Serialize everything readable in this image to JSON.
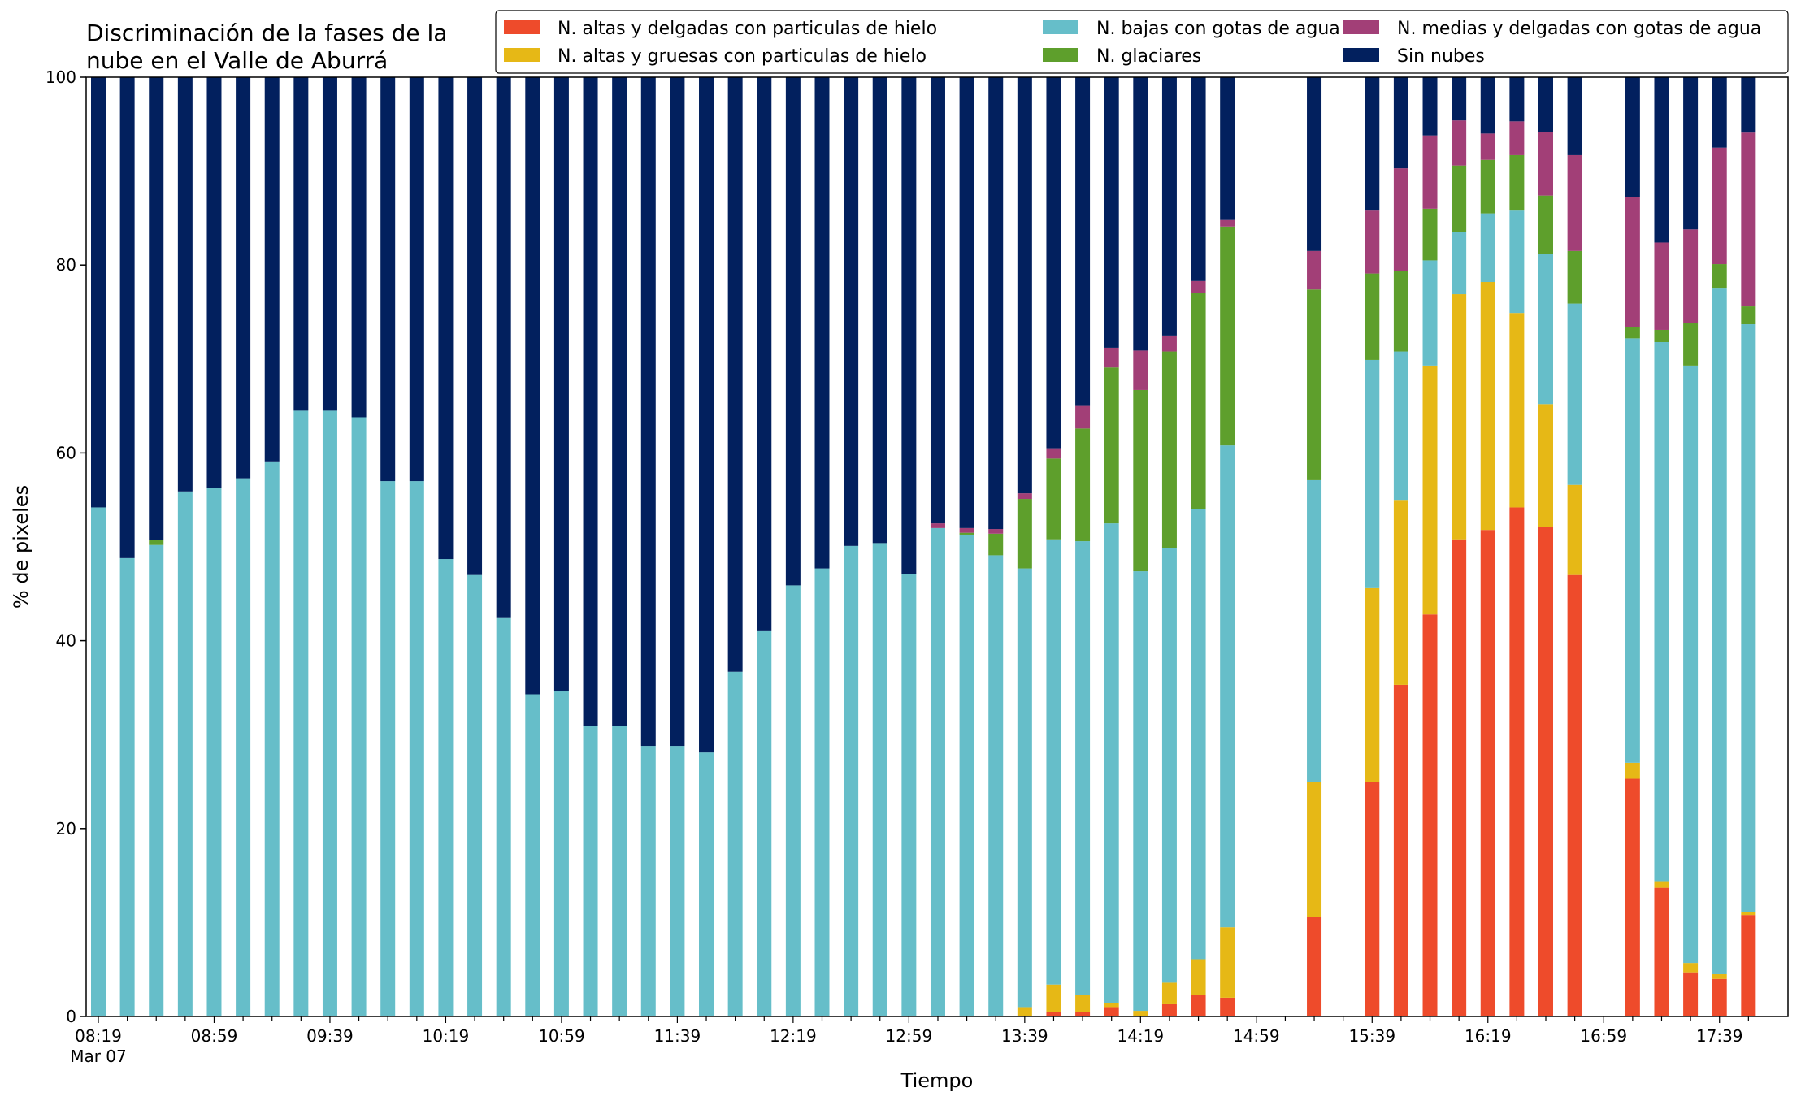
{
  "chart_data": {
    "type": "bar",
    "stacked": true,
    "title": "Discriminación de la fases de la nube en el Valle de Aburrá",
    "title_lines": [
      "Discriminación de la fases de la",
      "nube en el Valle de Aburrá"
    ],
    "xlabel": "Tiempo",
    "ylabel": "% de pixeles",
    "ylim": [
      0,
      100
    ],
    "yticks": [
      0,
      20,
      40,
      60,
      80,
      100
    ],
    "x_start": "08:19",
    "x_step_minutes": 10,
    "xtick_labels": [
      "08:19",
      "08:59",
      "09:39",
      "10:19",
      "10:59",
      "11:39",
      "12:19",
      "12:59",
      "13:39",
      "14:19",
      "14:59",
      "15:39",
      "16:19",
      "16:59",
      "17:39"
    ],
    "xtick_date": "Mar 07",
    "legend_position": "top-right",
    "grid": false,
    "categories": [
      "08:19",
      "08:29",
      "08:39",
      "08:49",
      "08:59",
      "09:09",
      "09:19",
      "09:29",
      "09:39",
      "09:49",
      "09:59",
      "10:09",
      "10:19",
      "10:29",
      "10:39",
      "10:49",
      "10:59",
      "11:09",
      "11:19",
      "11:29",
      "11:39",
      "11:49",
      "11:59",
      "12:09",
      "12:19",
      "12:29",
      "12:39",
      "12:49",
      "12:59",
      "13:09",
      "13:19",
      "13:29",
      "13:39",
      "13:49",
      "13:59",
      "14:09",
      "14:19",
      "14:29",
      "14:39",
      "14:49",
      "14:59",
      "15:09",
      "15:19",
      "15:29",
      "15:39",
      "15:49",
      "15:59",
      "16:09",
      "16:19",
      "16:29",
      "16:39",
      "16:49",
      "16:59",
      "17:09",
      "17:19",
      "17:29",
      "17:39",
      "17:49"
    ],
    "series": [
      {
        "name": "N. altas y delgadas con particulas de hielo",
        "color": "#EE4B2B",
        "values": [
          0,
          0,
          0,
          0,
          0,
          0,
          0,
          0,
          0,
          0,
          0,
          0,
          0,
          0,
          0,
          0,
          0,
          0,
          0,
          0,
          0,
          0,
          0,
          0,
          0,
          0,
          0,
          0,
          0,
          0,
          0,
          0,
          0,
          0.5,
          0.5,
          1.0,
          0,
          1.3,
          2.3,
          2.0,
          null,
          null,
          10.6,
          null,
          25.0,
          35.3,
          42.8,
          50.8,
          51.8,
          54.2,
          52.1,
          47.0,
          null,
          25.3,
          13.7,
          4.7,
          4.0,
          10.8
        ]
      },
      {
        "name": "N. altas y gruesas con particulas de hielo",
        "color": "#E6B816",
        "values": [
          0,
          0,
          0,
          0,
          0,
          0,
          0,
          0,
          0,
          0,
          0,
          0,
          0,
          0,
          0,
          0,
          0,
          0,
          0,
          0,
          0,
          0,
          0,
          0,
          0,
          0,
          0,
          0,
          0,
          0,
          0,
          0,
          1.0,
          2.9,
          1.8,
          0.4,
          0.6,
          2.3,
          3.8,
          7.5,
          null,
          null,
          14.4,
          null,
          20.6,
          19.7,
          26.5,
          26.1,
          26.4,
          20.7,
          13.1,
          9.6,
          null,
          1.7,
          0.7,
          1.0,
          0.5,
          0.3
        ]
      },
      {
        "name": "N. bajas con gotas de agua",
        "color": "#66BEC9",
        "values": [
          54.2,
          48.8,
          50.2,
          55.9,
          56.3,
          57.3,
          59.1,
          64.5,
          64.5,
          63.8,
          57.0,
          57.0,
          48.7,
          47.0,
          42.5,
          34.3,
          34.6,
          30.9,
          30.9,
          28.8,
          28.8,
          28.1,
          36.7,
          41.1,
          45.9,
          47.7,
          50.1,
          50.4,
          47.1,
          52.0,
          51.3,
          49.1,
          46.7,
          47.4,
          48.3,
          51.1,
          46.8,
          46.3,
          47.9,
          51.3,
          null,
          null,
          32.1,
          null,
          24.3,
          15.8,
          11.2,
          6.6,
          7.3,
          10.9,
          16.0,
          19.3,
          null,
          45.2,
          57.4,
          63.6,
          73.0,
          62.6
        ]
      },
      {
        "name": "N. glaciares",
        "color": "#5E9F2C",
        "values": [
          0,
          0,
          0.5,
          0,
          0,
          0,
          0,
          0,
          0,
          0,
          0,
          0,
          0,
          0,
          0,
          0,
          0,
          0,
          0,
          0,
          0,
          0,
          0,
          0,
          0,
          0,
          0,
          0,
          0,
          0,
          0.2,
          2.3,
          7.4,
          8.6,
          12.0,
          16.6,
          19.3,
          20.9,
          23.0,
          23.3,
          null,
          null,
          20.3,
          null,
          9.2,
          8.6,
          5.5,
          7.1,
          5.7,
          5.9,
          6.2,
          5.6,
          null,
          1.2,
          1.3,
          4.5,
          2.6,
          1.9
        ]
      },
      {
        "name": "N. medias y delgadas con gotas de agua",
        "color": "#A23F77",
        "values": [
          0,
          0,
          0,
          0,
          0,
          0,
          0,
          0,
          0,
          0,
          0,
          0,
          0,
          0,
          0,
          0,
          0,
          0,
          0,
          0,
          0,
          0,
          0,
          0,
          0,
          0,
          0,
          0,
          0,
          0.5,
          0.5,
          0.5,
          0.6,
          1.1,
          2.4,
          2.1,
          4.2,
          1.7,
          1.3,
          0.7,
          null,
          null,
          4.1,
          null,
          6.7,
          10.9,
          7.8,
          4.8,
          2.8,
          3.6,
          6.8,
          10.2,
          null,
          13.8,
          9.3,
          10.0,
          12.4,
          18.5
        ]
      },
      {
        "name": "Sin nubes",
        "color": "#02205E",
        "values": [
          45.8,
          51.2,
          49.3,
          44.1,
          43.7,
          42.7,
          40.9,
          35.5,
          35.5,
          36.2,
          43.0,
          43.0,
          51.3,
          53.0,
          57.5,
          65.7,
          65.4,
          69.1,
          69.1,
          71.2,
          71.2,
          71.9,
          63.3,
          58.9,
          54.1,
          52.3,
          49.9,
          49.6,
          52.9,
          47.5,
          48.0,
          48.1,
          44.3,
          39.5,
          35.0,
          28.8,
          29.1,
          27.5,
          21.7,
          15.2,
          null,
          null,
          18.5,
          null,
          14.2,
          9.7,
          6.2,
          4.6,
          6.0,
          4.7,
          5.8,
          8.3,
          null,
          12.8,
          17.6,
          16.2,
          7.5,
          5.9
        ]
      }
    ]
  }
}
